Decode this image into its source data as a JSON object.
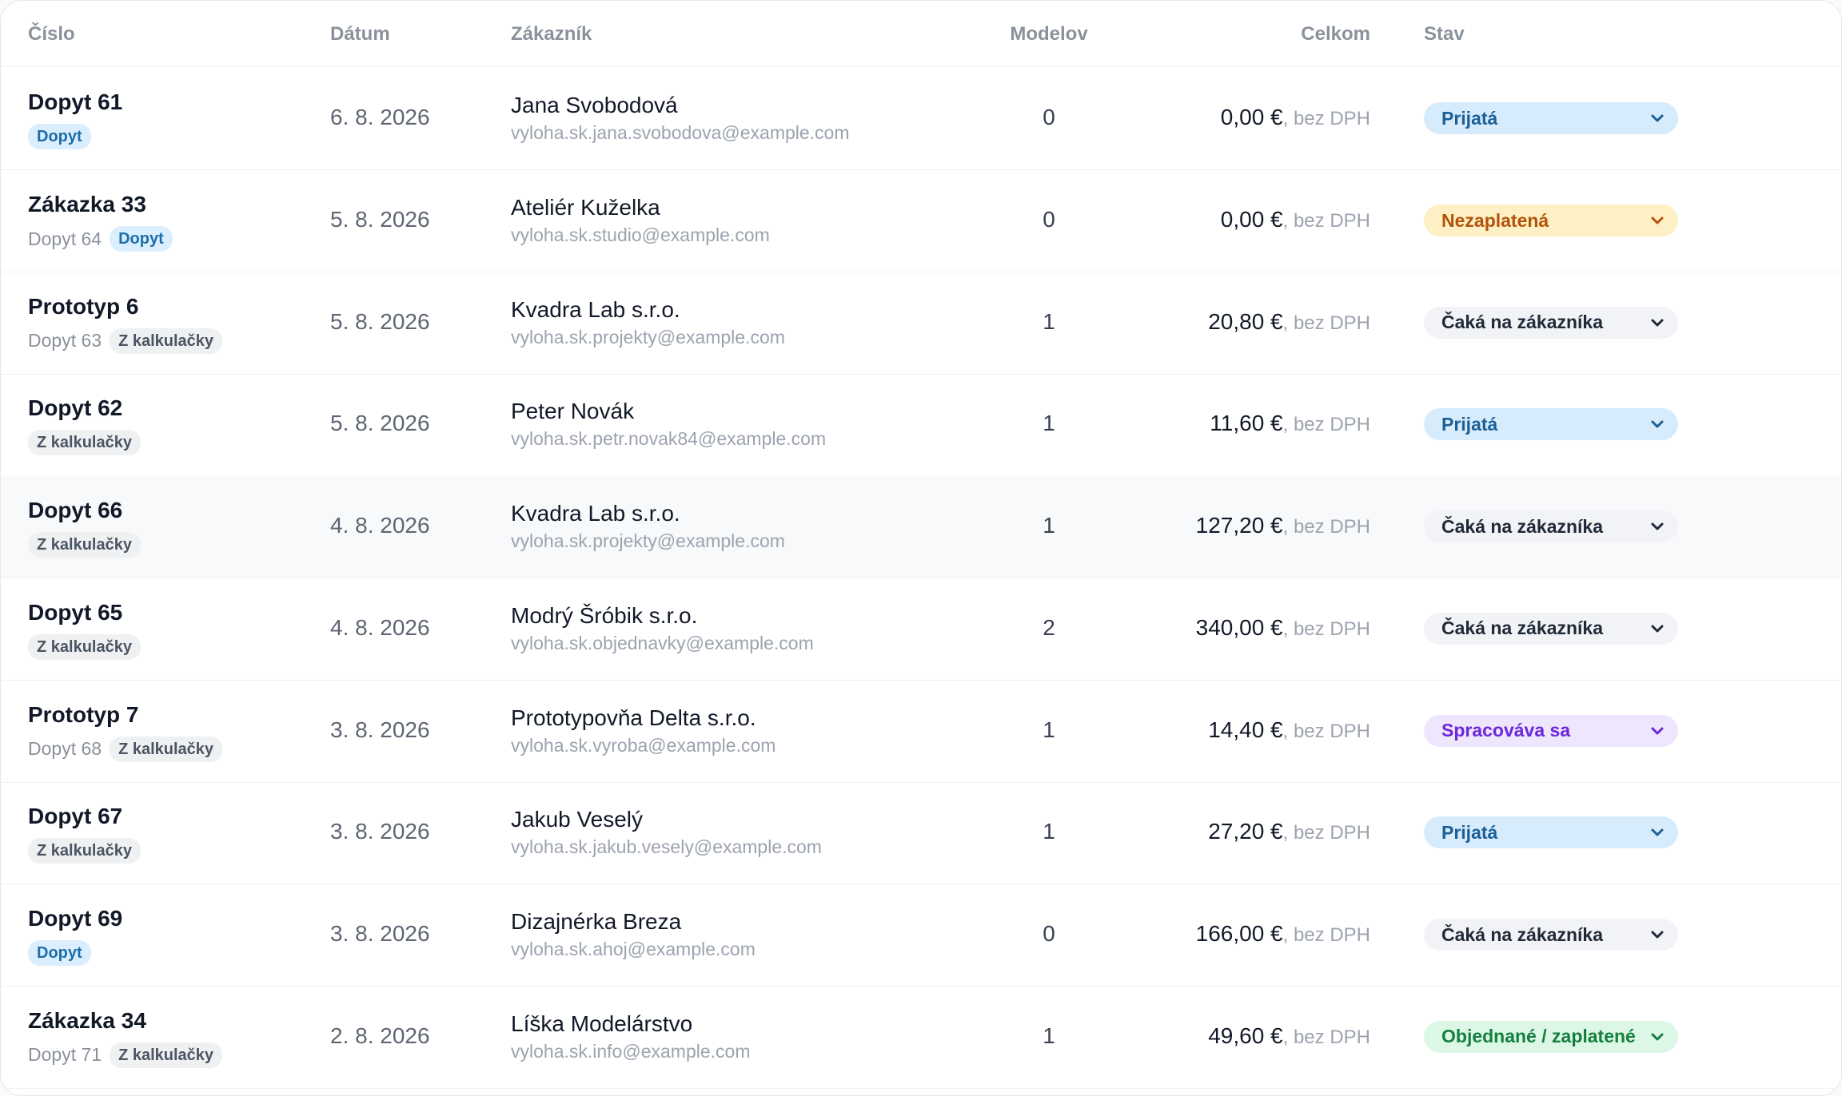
{
  "columns": {
    "number": "Číslo",
    "date": "Dátum",
    "customer": "Zákazník",
    "models": "Modelov",
    "total": "Celkom",
    "status": "Stav"
  },
  "vat_note": ", bez DPH",
  "status_colors": {
    "Prijatá": "#d6ebfc",
    "Nezaplatená": "#fdf0c4",
    "Čaká na zákazníka": "#f1f3f6",
    "Spracováva sa": "#ede6fd",
    "Objednané / zaplatené": "#dcf7e6"
  },
  "rows": [
    {
      "number": "Dopyt 61",
      "ref": "",
      "tag": "Dopyt",
      "tag_style": "blue",
      "date": "6. 8. 2026",
      "customer": "Jana Svobodová",
      "email": "vyloha.sk.jana.svobodova@example.com",
      "models": "0",
      "total": "0,00 €",
      "status": "Prijatá",
      "status_style": "blue"
    },
    {
      "number": "Zákazka 33",
      "ref": "Dopyt 64",
      "tag": "Dopyt",
      "tag_style": "blue",
      "date": "5. 8. 2026",
      "customer": "Ateliér Kuželka",
      "email": "vyloha.sk.studio@example.com",
      "models": "0",
      "total": "0,00 €",
      "status": "Nezaplatená",
      "status_style": "amber"
    },
    {
      "number": "Prototyp 6",
      "ref": "Dopyt 63",
      "tag": "Z kalkulačky",
      "tag_style": "gray",
      "date": "5. 8. 2026",
      "customer": "Kvadra Lab s.r.o.",
      "email": "vyloha.sk.projekty@example.com",
      "models": "1",
      "total": "20,80 €",
      "status": "Čaká na zákazníka",
      "status_style": "gray"
    },
    {
      "number": "Dopyt 62",
      "ref": "",
      "tag": "Z kalkulačky",
      "tag_style": "gray",
      "date": "5. 8. 2026",
      "customer": "Peter Novák",
      "email": "vyloha.sk.petr.novak84@example.com",
      "models": "1",
      "total": "11,60 €",
      "status": "Prijatá",
      "status_style": "blue"
    },
    {
      "number": "Dopyt 66",
      "ref": "",
      "tag": "Z kalkulačky",
      "tag_style": "gray",
      "date": "4. 8. 2026",
      "customer": "Kvadra Lab s.r.o.",
      "email": "vyloha.sk.projekty@example.com",
      "models": "1",
      "total": "127,20 €",
      "status": "Čaká na zákazníka",
      "status_style": "gray",
      "hover": true
    },
    {
      "number": "Dopyt 65",
      "ref": "",
      "tag": "Z kalkulačky",
      "tag_style": "gray",
      "date": "4. 8. 2026",
      "customer": "Modrý Šróbik s.r.o.",
      "email": "vyloha.sk.objednavky@example.com",
      "models": "2",
      "total": "340,00 €",
      "status": "Čaká na zákazníka",
      "status_style": "gray"
    },
    {
      "number": "Prototyp 7",
      "ref": "Dopyt 68",
      "tag": "Z kalkulačky",
      "tag_style": "gray",
      "date": "3. 8. 2026",
      "customer": "Prototypovňa Delta s.r.o.",
      "email": "vyloha.sk.vyroba@example.com",
      "models": "1",
      "total": "14,40 €",
      "status": "Spracováva sa",
      "status_style": "purple"
    },
    {
      "number": "Dopyt 67",
      "ref": "",
      "tag": "Z kalkulačky",
      "tag_style": "gray",
      "date": "3. 8. 2026",
      "customer": "Jakub Veselý",
      "email": "vyloha.sk.jakub.vesely@example.com",
      "models": "1",
      "total": "27,20 €",
      "status": "Prijatá",
      "status_style": "blue"
    },
    {
      "number": "Dopyt 69",
      "ref": "",
      "tag": "Dopyt",
      "tag_style": "blue",
      "date": "3. 8. 2026",
      "customer": "Dizajnérka Breza",
      "email": "vyloha.sk.ahoj@example.com",
      "models": "0",
      "total": "166,00 €",
      "status": "Čaká na zákazníka",
      "status_style": "gray"
    },
    {
      "number": "Zákazka 34",
      "ref": "Dopyt 71",
      "tag": "Z kalkulačky",
      "tag_style": "gray",
      "date": "2. 8. 2026",
      "customer": "Líška Modelárstvo",
      "email": "vyloha.sk.info@example.com",
      "models": "1",
      "total": "49,60 €",
      "status": "Objednané / zaplatené",
      "status_style": "green"
    }
  ]
}
